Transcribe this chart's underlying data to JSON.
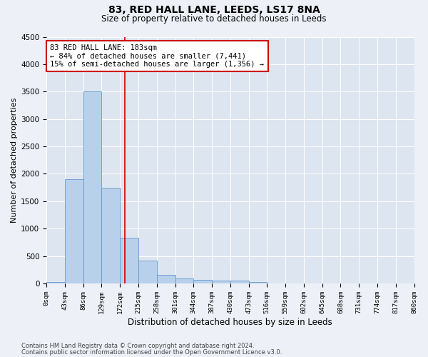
{
  "title": "83, RED HALL LANE, LEEDS, LS17 8NA",
  "subtitle": "Size of property relative to detached houses in Leeds",
  "xlabel": "Distribution of detached houses by size in Leeds",
  "ylabel": "Number of detached properties",
  "bar_edges": [
    0,
    43,
    86,
    129,
    172,
    215,
    258,
    301,
    344,
    387,
    430,
    473,
    516,
    559,
    602,
    645,
    688,
    731,
    774,
    817,
    860
  ],
  "bar_heights": [
    30,
    1900,
    3500,
    1750,
    830,
    420,
    160,
    95,
    70,
    55,
    55,
    30,
    0,
    0,
    0,
    0,
    0,
    0,
    0,
    0
  ],
  "bar_color": "#b8d0ea",
  "bar_edge_color": "#6699cc",
  "vline_x": 183,
  "vline_color": "#cc0000",
  "annotation_line1": "83 RED HALL LANE: 183sqm",
  "annotation_line2": "← 84% of detached houses are smaller (7,441)",
  "annotation_line3": "15% of semi-detached houses are larger (1,356) →",
  "annotation_box_color": "#cc0000",
  "ylim": [
    0,
    4500
  ],
  "yticks": [
    0,
    500,
    1000,
    1500,
    2000,
    2500,
    3000,
    3500,
    4000,
    4500
  ],
  "footer_line1": "Contains HM Land Registry data © Crown copyright and database right 2024.",
  "footer_line2": "Contains public sector information licensed under the Open Government Licence v3.0.",
  "bg_color": "#edf1f7",
  "plot_bg_color": "#dde5f0",
  "grid_color": "#ffffff",
  "title_fontsize": 10,
  "subtitle_fontsize": 8.5,
  "ylabel_fontsize": 8,
  "xlabel_fontsize": 8.5,
  "ytick_fontsize": 7.5,
  "xtick_fontsize": 6.5
}
